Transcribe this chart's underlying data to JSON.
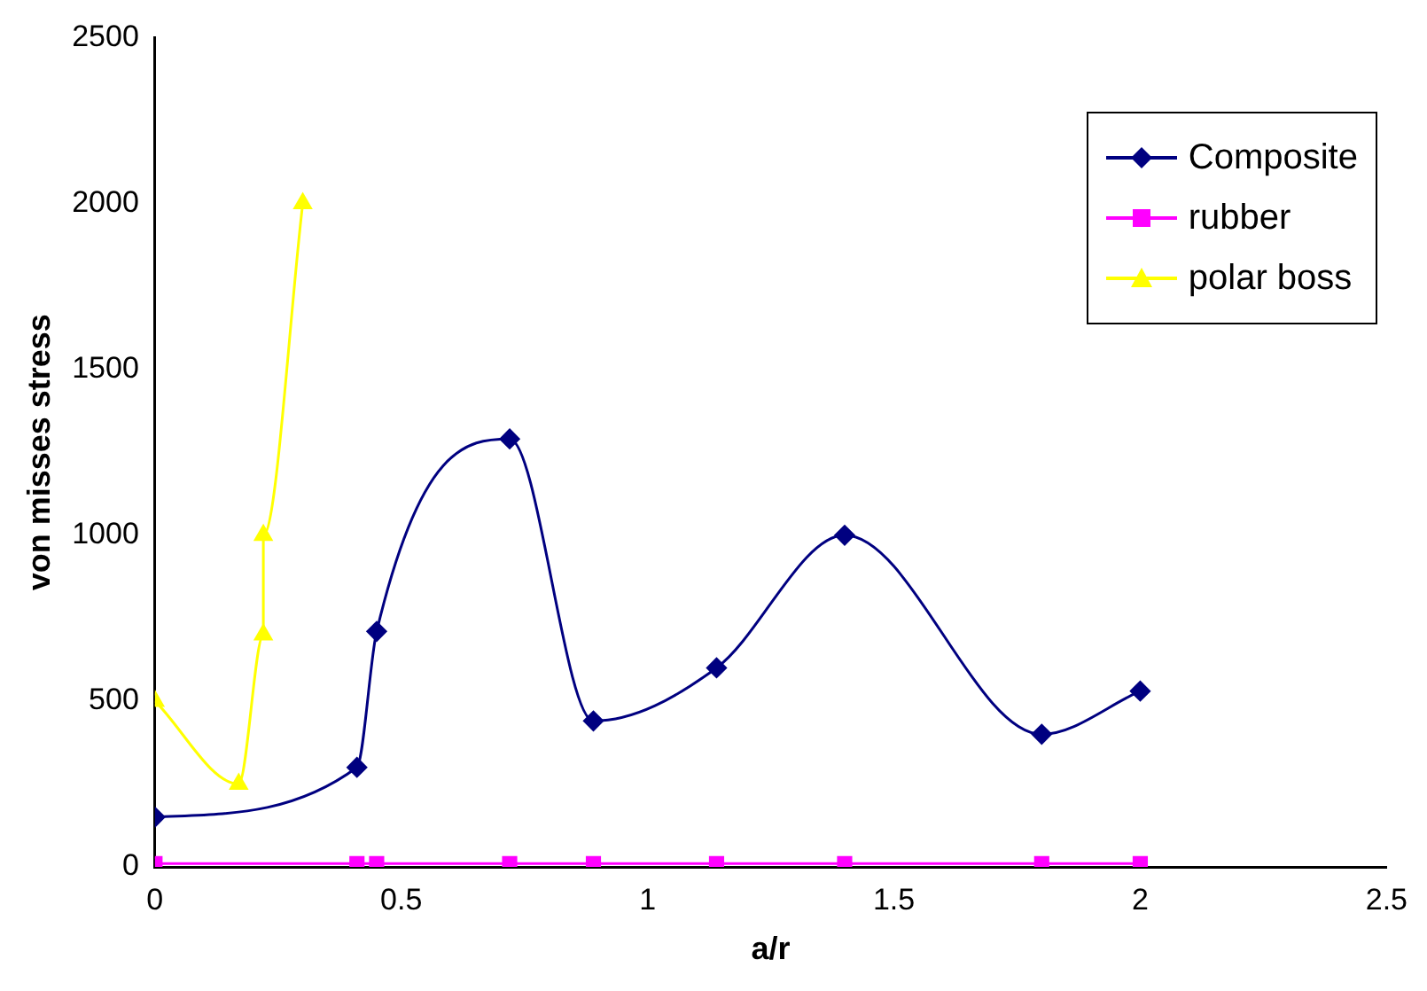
{
  "chart_data": {
    "type": "line",
    "xlabel": "a/r",
    "ylabel": "von misses stress",
    "xlim": [
      0,
      2.5
    ],
    "xticks": [
      0,
      0.5,
      1,
      1.5,
      2,
      2.5
    ],
    "ylim": [
      0,
      2500
    ],
    "yticks": [
      0,
      500,
      1000,
      1500,
      2000,
      2500
    ],
    "grid": false,
    "legend": "top right",
    "series": [
      {
        "name": "Composite",
        "color": "#000080",
        "marker": "diamond",
        "x": [
          0,
          0.41,
          0.45,
          0.72,
          0.89,
          1.14,
          1.4,
          1.8,
          2
        ],
        "values": [
          150,
          300,
          710,
          1290,
          440,
          600,
          1000,
          400,
          530
        ]
      },
      {
        "name": "rubber",
        "color": "#ff00ff",
        "marker": "square",
        "x": [
          0,
          0.41,
          0.45,
          0.72,
          0.89,
          1.14,
          1.4,
          1.8,
          2
        ],
        "values": [
          10,
          10,
          10,
          10,
          10,
          10,
          10,
          10,
          10
        ]
      },
      {
        "name": "polar boss",
        "color": "#ffff00",
        "marker": "triangle",
        "x": [
          0,
          0.17,
          0.22,
          0.22,
          0.3
        ],
        "values": [
          500,
          250,
          700,
          1000,
          2000
        ]
      }
    ]
  }
}
